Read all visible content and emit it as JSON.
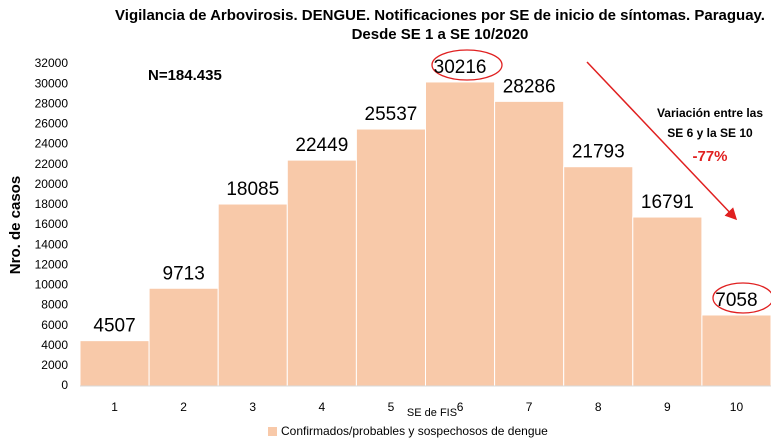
{
  "chart_data": {
    "type": "bar",
    "title": "Vigilancia de Arbovirosis. DENGUE. Notificaciones por SE de inicio de síntomas. Paraguay.",
    "subtitle": "Desde SE 1 a SE 10/2020",
    "y_label": "Nro. de casos",
    "x_label": "SE de FIS",
    "annotations": [
      "N=184.435",
      "Variación entre las",
      "SE 6 y la SE 10",
      "-77%"
    ],
    "categories": [
      "1",
      "2",
      "3",
      "4",
      "5",
      "6",
      "7",
      "8",
      "9",
      "10"
    ],
    "series": [
      {
        "name": "Confirmados/probables y sospechosos de dengue",
        "color": "#f8c9a9",
        "values": [
          4507,
          9713,
          18085,
          22449,
          25537,
          30216,
          28286,
          21793,
          16791,
          7058
        ]
      }
    ],
    "ylim": [
      0,
      32000
    ],
    "yticks": [
      0,
      2000,
      4000,
      6000,
      8000,
      10000,
      12000,
      14000,
      16000,
      18000,
      20000,
      22000,
      24000,
      26000,
      28000,
      30000,
      32000
    ],
    "grid": false
  }
}
